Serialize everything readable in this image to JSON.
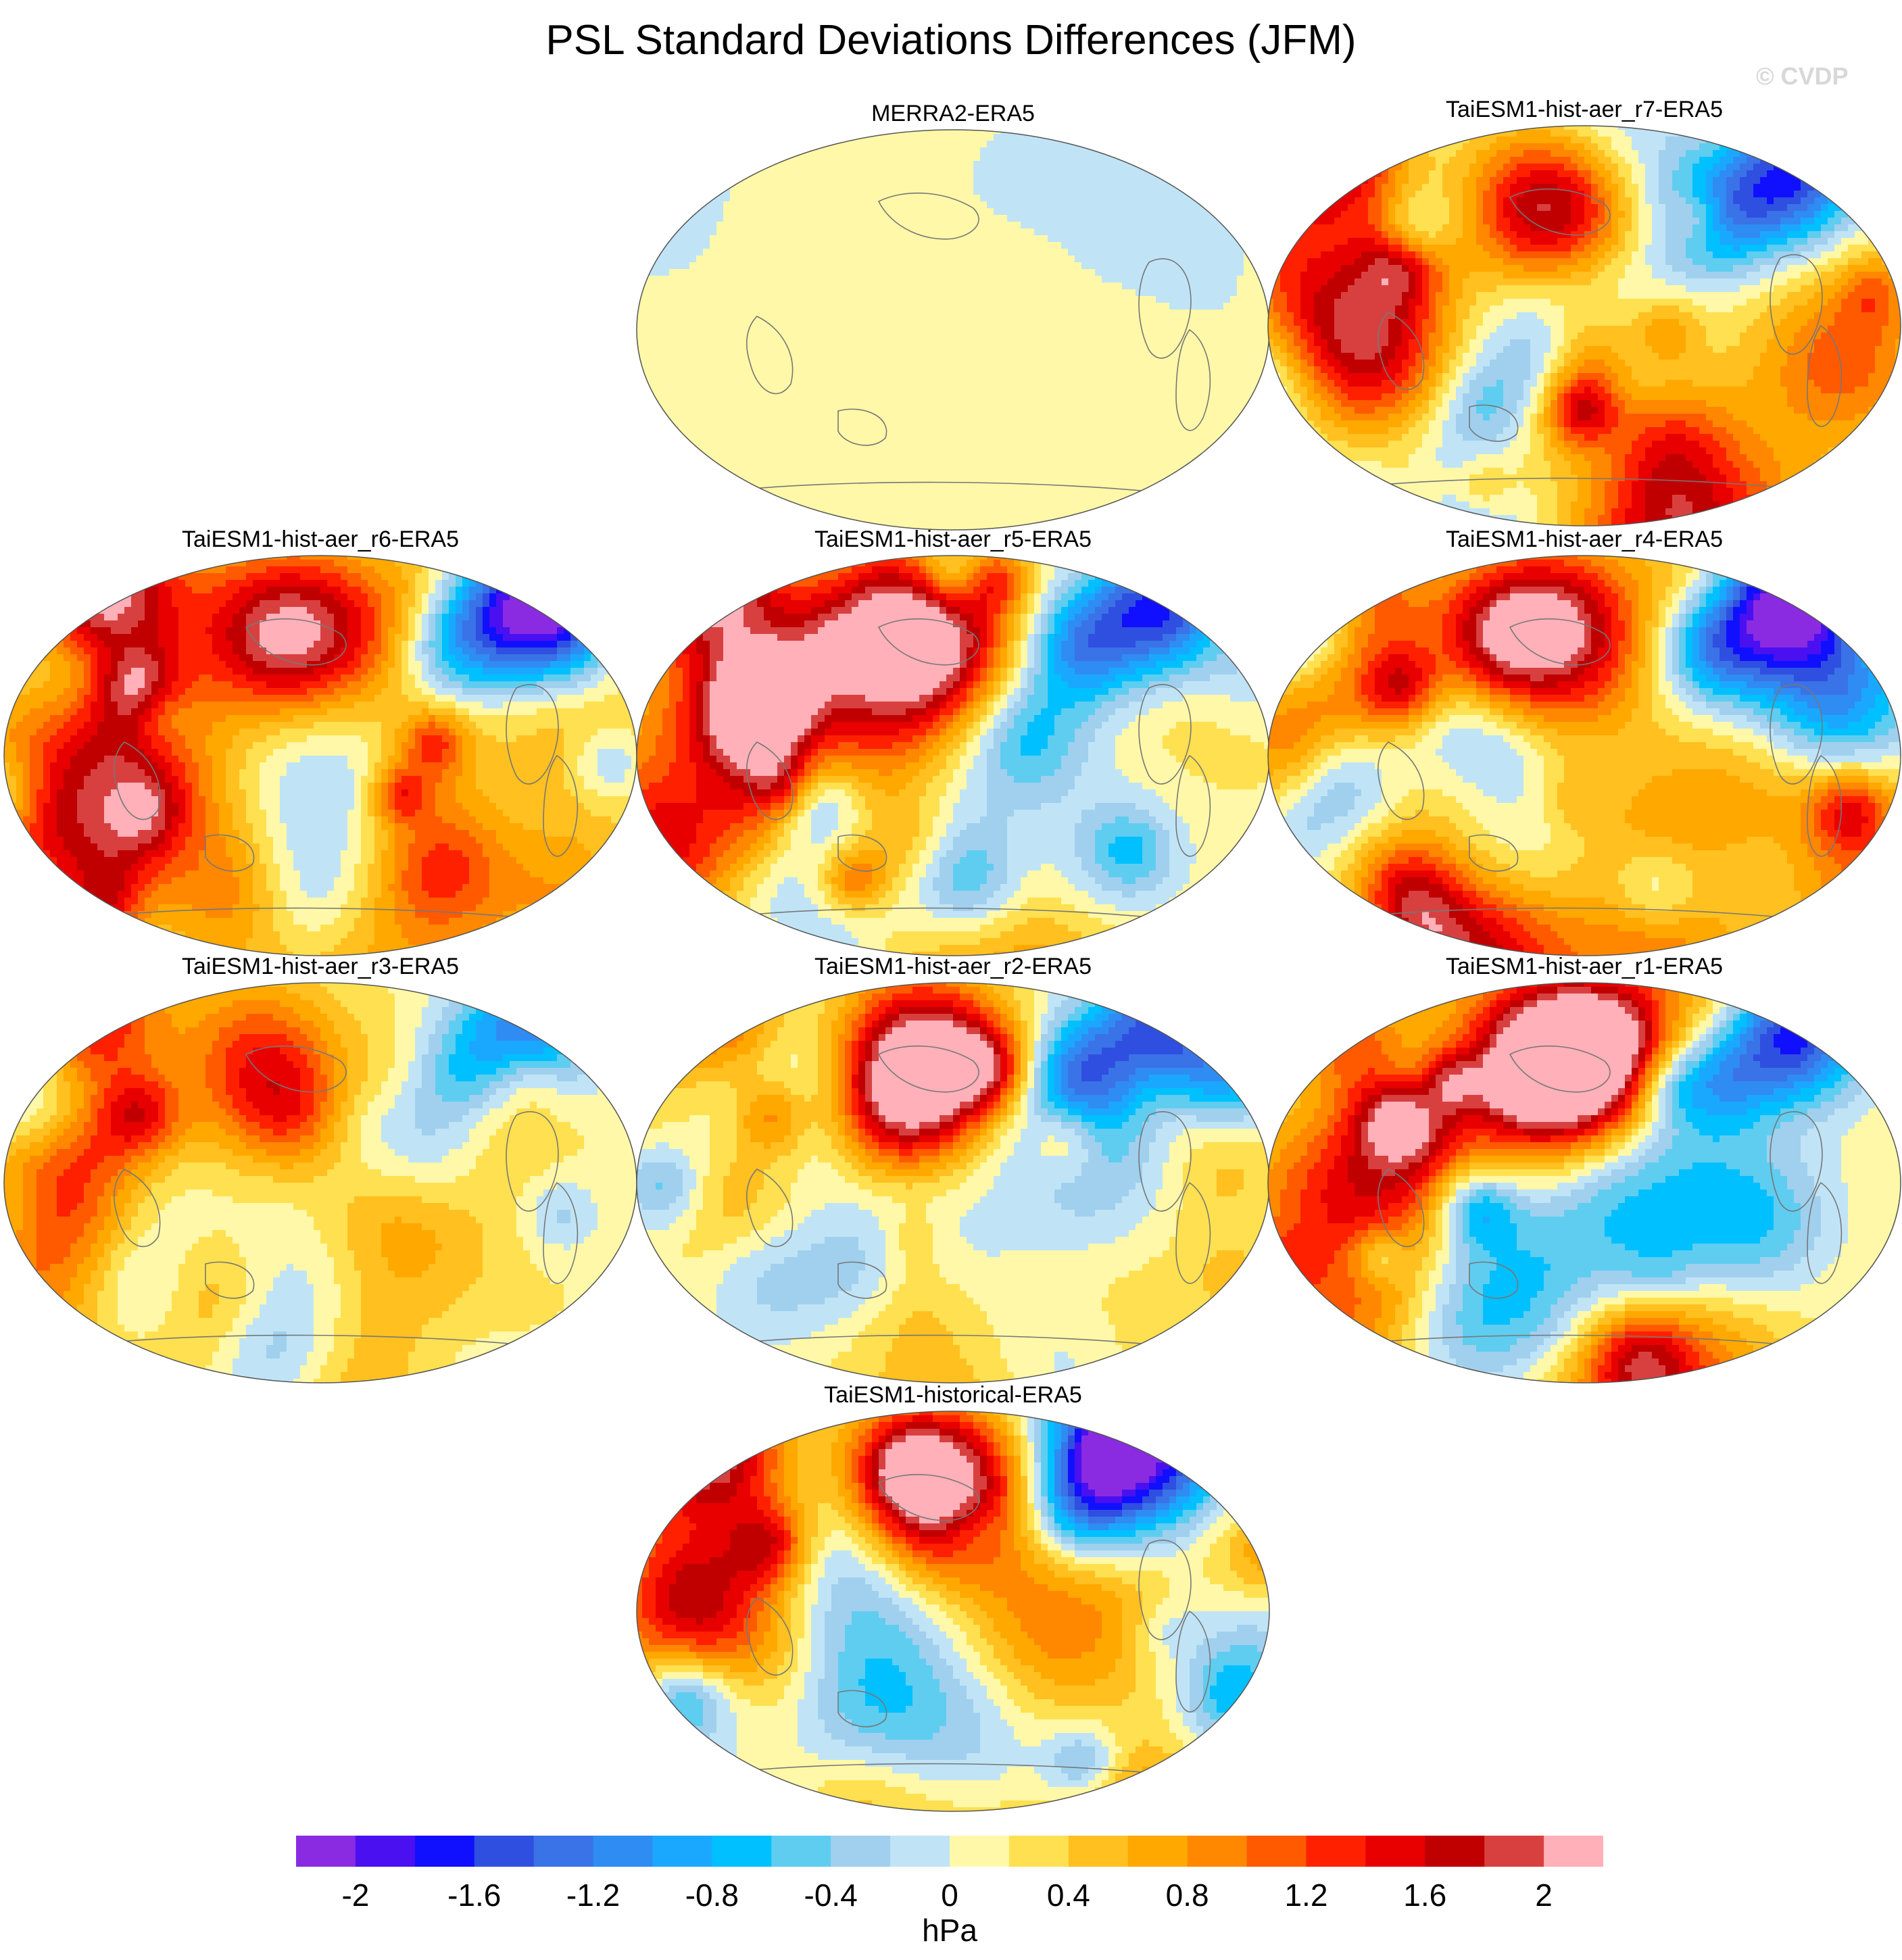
{
  "title": "PSL Standard Deviations Differences (JFM)",
  "watermark": "© CVDP",
  "panels": [
    {
      "id": "merra2",
      "title": "MERRA2-ERA5",
      "intensity": 0.15
    },
    {
      "id": "r7",
      "title": "TaiESM1-hist-aer_r7-ERA5",
      "intensity": 1.0
    },
    {
      "id": "r6",
      "title": "TaiESM1-hist-aer_r6-ERA5",
      "intensity": 0.9
    },
    {
      "id": "r5",
      "title": "TaiESM1-hist-aer_r5-ERA5",
      "intensity": 1.0
    },
    {
      "id": "r4",
      "title": "TaiESM1-hist-aer_r4-ERA5",
      "intensity": 1.0
    },
    {
      "id": "r3",
      "title": "TaiESM1-hist-aer_r3-ERA5",
      "intensity": 0.8
    },
    {
      "id": "r2",
      "title": "TaiESM1-hist-aer_r2-ERA5",
      "intensity": 1.0
    },
    {
      "id": "r1",
      "title": "TaiESM1-hist-aer_r1-ERA5",
      "intensity": 1.0
    },
    {
      "id": "historical",
      "title": "TaiESM1-historical-ERA5",
      "intensity": 0.95
    }
  ],
  "colorbar": {
    "unit": "hPa",
    "tick_labels": [
      "-2",
      "-1.6",
      "-1.2",
      "-0.8",
      "-0.4",
      "0",
      "0.4",
      "0.8",
      "1.2",
      "1.6",
      "2"
    ],
    "colors": [
      "#8a2be2",
      "#4a10f0",
      "#1010ff",
      "#2f4fe0",
      "#3a72e8",
      "#2f8cf2",
      "#1aa8ff",
      "#00c0ff",
      "#5fcdf0",
      "#a0d0ee",
      "#c0e4f6",
      "#fff8a8",
      "#ffe050",
      "#ffc020",
      "#ffa800",
      "#ff8800",
      "#ff5a00",
      "#ff2000",
      "#e80000",
      "#c00000",
      "#d84040",
      "#ffb0b8"
    ]
  }
}
